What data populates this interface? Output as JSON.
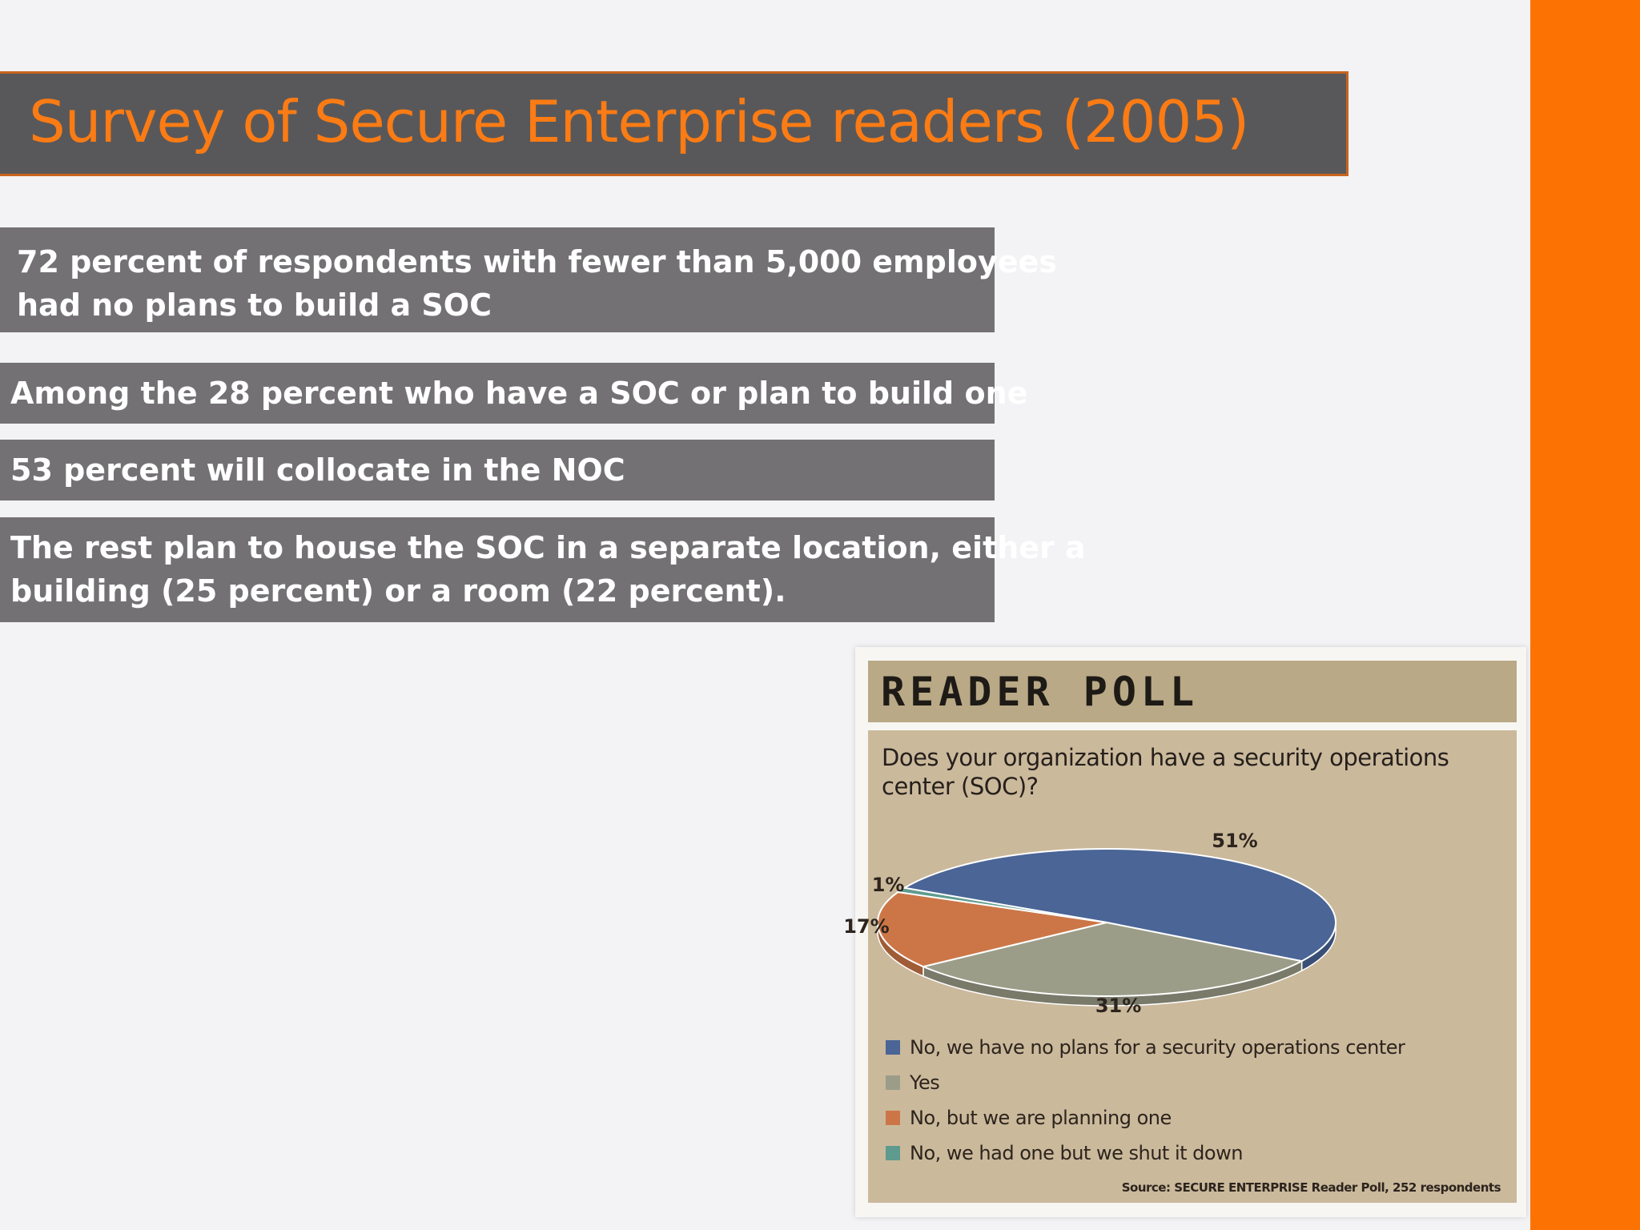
{
  "slide": {
    "title": "Survey of Secure Enterprise readers (2005)",
    "accent_color": "#fc7303",
    "bullets": [
      [
        "72 percent of respondents with fewer than 5,000 employees",
        "had no plans to build a SOC"
      ],
      [
        "Among the 28 percent who have a SOC or plan to build one"
      ],
      [
        "53 percent will collocate in the NOC"
      ],
      [
        "The rest plan to house the SOC in a separate location, either a",
        "building (25 percent) or a room (22 percent)."
      ]
    ]
  },
  "poll": {
    "header": "READER POLL",
    "question_lines": [
      "Does your organization have a security operations",
      "center (SOC)?"
    ],
    "source": "Source: SECURE ENTERPRISE Reader Poll, 252 respondents"
  },
  "chart_data": {
    "type": "pie",
    "title": "Does your organization have a security operations center (SOC)?",
    "series": [
      {
        "name": "No, we have no plans for a security operations center",
        "value": 51,
        "label": "51%",
        "color": "#4a6596"
      },
      {
        "name": "Yes",
        "value": 31,
        "label": "31%",
        "color": "#9b9d88"
      },
      {
        "name": "No, but we are planning one",
        "value": 17,
        "label": "17%",
        "color": "#cc7647"
      },
      {
        "name": "No, we had one but we shut it down",
        "value": 1,
        "label": "1%",
        "color": "#5e9b8e"
      }
    ],
    "legend_position": "bottom-left",
    "style": "3d"
  }
}
